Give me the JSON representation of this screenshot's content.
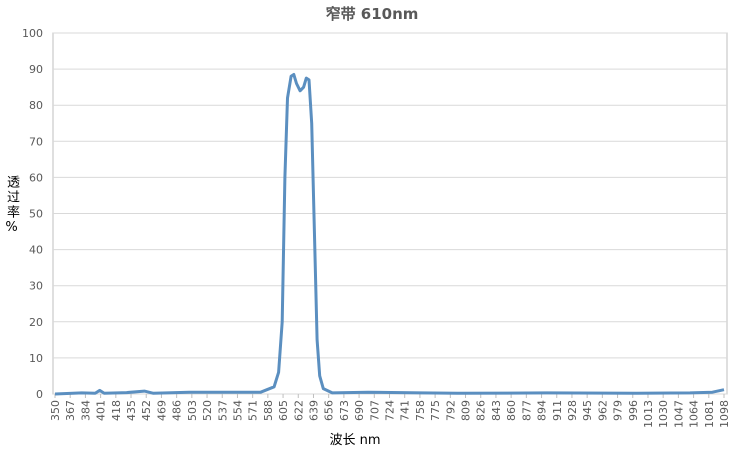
{
  "chart_data": {
    "type": "line",
    "title": "窄带 610nm",
    "x_label": "波长 nm",
    "y_label": "透过率%",
    "x": [
      350,
      380,
      395,
      400,
      405,
      430,
      450,
      460,
      500,
      550,
      580,
      595,
      600,
      604,
      607,
      610,
      614,
      617,
      620,
      624,
      628,
      631,
      634,
      637,
      640,
      643,
      646,
      650,
      660,
      700,
      760,
      800,
      900,
      1000,
      1060,
      1085,
      1098
    ],
    "values": [
      0,
      0.3,
      0.2,
      1,
      0.2,
      0.4,
      0.8,
      0.2,
      0.5,
      0.5,
      0.5,
      2,
      6,
      20,
      60,
      82,
      88,
      88.5,
      86,
      84,
      85,
      87.5,
      87,
      75,
      45,
      15,
      5,
      1.5,
      0.3,
      0.5,
      0.3,
      0.2,
      0.3,
      0.2,
      0.3,
      0.5,
      1.2
    ],
    "color": "#5b8fc0",
    "xlim": [
      350,
      1098
    ],
    "xticks": [
      350,
      367,
      384,
      401,
      418,
      435,
      452,
      469,
      486,
      503,
      520,
      537,
      554,
      571,
      588,
      605,
      622,
      639,
      656,
      673,
      690,
      707,
      724,
      741,
      758,
      775,
      792,
      809,
      826,
      843,
      860,
      877,
      894,
      911,
      928,
      945,
      962,
      979,
      996,
      1013,
      1030,
      1047,
      1064,
      1081,
      1098
    ],
    "ylim": [
      0,
      100
    ],
    "yticks": [
      0,
      10,
      20,
      30,
      40,
      50,
      60,
      70,
      80,
      90,
      100
    ],
    "grid": true
  }
}
